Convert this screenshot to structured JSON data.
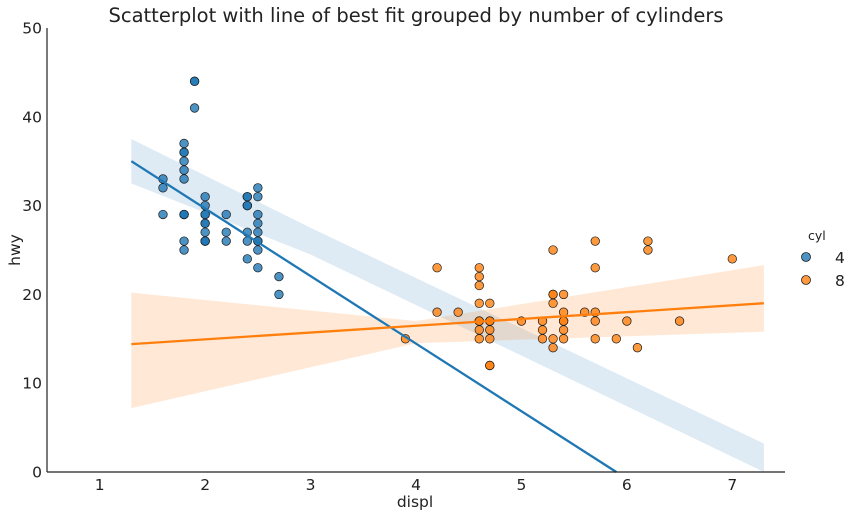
{
  "chart_data": {
    "type": "scatter",
    "title": "Scatterplot with line of best fit grouped by number of cylinders",
    "xlabel": "displ",
    "ylabel": "hwy",
    "xlim": [
      0.5,
      7.5
    ],
    "ylim": [
      0,
      50
    ],
    "xticks": [
      1,
      2,
      3,
      4,
      5,
      6,
      7
    ],
    "yticks": [
      0,
      10,
      20,
      30,
      40,
      50
    ],
    "grid": false,
    "legend": {
      "title": "cyl",
      "placement": "right"
    },
    "series": [
      {
        "name": "4",
        "color": "#1f77b4",
        "points": [
          [
            1.8,
            29
          ],
          [
            1.8,
            29
          ],
          [
            2.0,
            31
          ],
          [
            2.0,
            30
          ],
          [
            1.8,
            26
          ],
          [
            1.8,
            25
          ],
          [
            2.0,
            28
          ],
          [
            2.0,
            27
          ],
          [
            2.4,
            31
          ],
          [
            2.4,
            30
          ],
          [
            2.5,
            26
          ],
          [
            2.5,
            25
          ],
          [
            2.2,
            27
          ],
          [
            2.2,
            29
          ],
          [
            2.4,
            30
          ],
          [
            2.4,
            27
          ],
          [
            2.5,
            32
          ],
          [
            2.5,
            31
          ],
          [
            1.8,
            33
          ],
          [
            1.8,
            35
          ],
          [
            1.8,
            37
          ],
          [
            1.8,
            36
          ],
          [
            1.9,
            44
          ],
          [
            1.9,
            41
          ],
          [
            1.9,
            44
          ],
          [
            2.0,
            29
          ],
          [
            2.0,
            26
          ],
          [
            2.5,
            29
          ],
          [
            2.5,
            28
          ],
          [
            2.7,
            22
          ],
          [
            2.7,
            20
          ],
          [
            2.5,
            23
          ],
          [
            2.4,
            24
          ],
          [
            2.0,
            26
          ],
          [
            1.6,
            33
          ],
          [
            1.6,
            32
          ],
          [
            1.6,
            29
          ],
          [
            2.5,
            27
          ],
          [
            2.4,
            26
          ],
          [
            2.2,
            26
          ],
          [
            2.0,
            29
          ],
          [
            1.8,
            36
          ],
          [
            1.8,
            34
          ],
          [
            2.0,
            28
          ],
          [
            2.0,
            26
          ],
          [
            2.4,
            31
          ],
          [
            2.5,
            26
          ],
          [
            1.8,
            29
          ]
        ],
        "fit": {
          "x": [
            1.3,
            5.9
          ],
          "y": [
            35.0,
            0.0
          ]
        },
        "ci_band": {
          "x": [
            1.3,
            3.0,
            7.3
          ],
          "lower": [
            32.5,
            24.5,
            -5.0
          ],
          "upper": [
            37.5,
            27.5,
            3.2
          ]
        }
      },
      {
        "name": "8",
        "color": "#ff7f0e",
        "points": [
          [
            5.7,
            26
          ],
          [
            5.7,
            23
          ],
          [
            6.2,
            26
          ],
          [
            6.2,
            25
          ],
          [
            7.0,
            24
          ],
          [
            5.3,
            25
          ],
          [
            5.3,
            20
          ],
          [
            5.7,
            18
          ],
          [
            6.5,
            17
          ],
          [
            4.2,
            23
          ],
          [
            4.2,
            18
          ],
          [
            4.4,
            18
          ],
          [
            4.6,
            23
          ],
          [
            4.6,
            22
          ],
          [
            4.6,
            21
          ],
          [
            4.6,
            19
          ],
          [
            4.6,
            17
          ],
          [
            4.6,
            16
          ],
          [
            4.6,
            15
          ],
          [
            4.7,
            19
          ],
          [
            4.7,
            17
          ],
          [
            4.7,
            16
          ],
          [
            4.7,
            15
          ],
          [
            4.7,
            12
          ],
          [
            4.7,
            12
          ],
          [
            5.0,
            17
          ],
          [
            5.2,
            17
          ],
          [
            5.2,
            16
          ],
          [
            5.2,
            15
          ],
          [
            5.3,
            20
          ],
          [
            5.3,
            19
          ],
          [
            5.3,
            15
          ],
          [
            5.3,
            14
          ],
          [
            5.4,
            20
          ],
          [
            5.4,
            18
          ],
          [
            5.4,
            17
          ],
          [
            5.4,
            16
          ],
          [
            5.4,
            15
          ],
          [
            5.7,
            17
          ],
          [
            5.7,
            15
          ],
          [
            5.9,
            15
          ],
          [
            6.0,
            17
          ],
          [
            6.1,
            14
          ],
          [
            3.9,
            15
          ],
          [
            5.6,
            18
          ],
          [
            4.7,
            17
          ],
          [
            5.4,
            17
          ],
          [
            4.6,
            17
          ]
        ],
        "fit": {
          "x": [
            1.3,
            7.3
          ],
          "y": [
            14.4,
            19.0
          ]
        },
        "ci_band": {
          "x": [
            1.3,
            4.0,
            7.3
          ],
          "lower": [
            7.2,
            14.5,
            15.8
          ],
          "upper": [
            20.2,
            17.0,
            23.3
          ]
        }
      }
    ]
  }
}
